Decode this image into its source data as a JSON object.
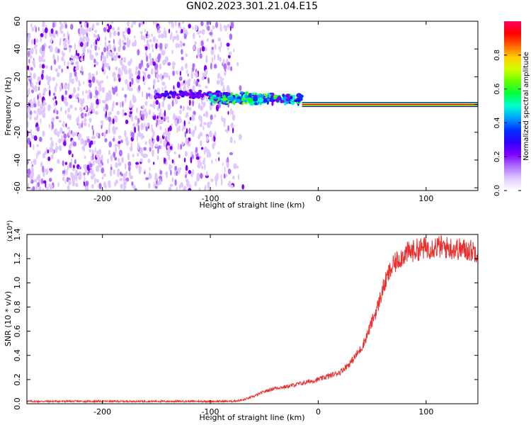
{
  "title": "GN02.2023.301.21.04.E15",
  "chart_data": [
    {
      "type": "heatmap",
      "title": "GN02.2023.301.21.04.E15",
      "xlabel": "Height of straight line (km)",
      "ylabel": "Frequency (Hz)",
      "xlim": [
        -270,
        148
      ],
      "ylim": [
        -62,
        60
      ],
      "xticks": [
        -200,
        -100,
        0,
        100
      ],
      "yticks": [
        -60,
        -40,
        -20,
        0,
        20,
        40,
        60
      ],
      "colorbar": {
        "label": "Normalized spectral amplitude",
        "range": [
          0.0,
          1.0
        ],
        "ticks": [
          "0.0",
          "0.2",
          "0.4",
          "0.6",
          "0.8"
        ],
        "colormap": [
          "#ffffff",
          "#e0c8ff",
          "#b070ff",
          "#8000ff",
          "#3000ff",
          "#0030ff",
          "#00a0ff",
          "#00ffd0",
          "#00ff40",
          "#60ff00",
          "#d0ff00",
          "#ffd000",
          "#ff6000",
          "#ff0000",
          "#ff0060"
        ]
      },
      "features": {
        "noise_region_x": [
          -270,
          -80
        ],
        "transition_x": [
          -100,
          -15
        ],
        "tone_x": [
          -15,
          148
        ],
        "tone_frequency_hz": 0
      }
    },
    {
      "type": "line",
      "xlabel": "Height of straight line (km)",
      "ylabel": "SNR (10 * v/v)",
      "y_scale_label": "(x10⁴)",
      "xlim": [
        -270,
        148
      ],
      "ylim": [
        0.0,
        1.4
      ],
      "xticks": [
        -200,
        -100,
        0,
        100
      ],
      "yticks": [
        "0.0",
        "0.2",
        "0.4",
        "0.6",
        "0.8",
        "1.0",
        "1.2",
        "1.4"
      ],
      "series": [
        {
          "color": "#e8302e",
          "x": [
            -270,
            -200,
            -150,
            -100,
            -80,
            -70,
            -60,
            -50,
            -40,
            -30,
            -20,
            -10,
            0,
            10,
            20,
            30,
            40,
            45,
            50,
            55,
            60,
            65,
            70,
            75,
            80,
            90,
            100,
            110,
            120,
            130,
            140,
            148
          ],
          "y": [
            0.02,
            0.02,
            0.02,
            0.02,
            0.02,
            0.03,
            0.06,
            0.1,
            0.13,
            0.14,
            0.16,
            0.18,
            0.2,
            0.23,
            0.26,
            0.34,
            0.46,
            0.56,
            0.68,
            0.8,
            0.95,
            1.07,
            1.15,
            1.2,
            1.24,
            1.27,
            1.29,
            1.3,
            1.29,
            1.28,
            1.27,
            1.26
          ]
        }
      ]
    }
  ]
}
